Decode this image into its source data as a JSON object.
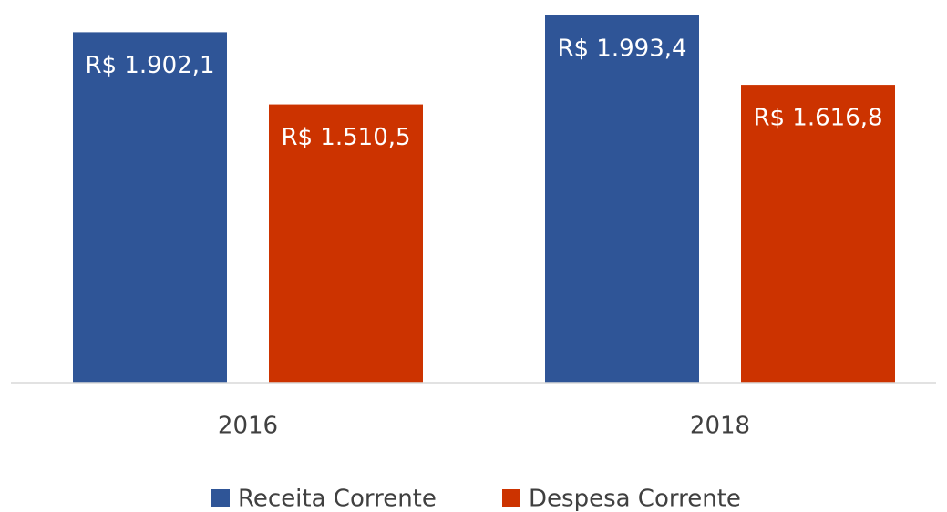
{
  "chart_data": {
    "type": "bar",
    "categories": [
      "2016",
      "2018"
    ],
    "series": [
      {
        "name": "Receita Corrente",
        "color": "#2f5597",
        "values": [
          1902.1,
          1993.4
        ],
        "value_labels": [
          "R$ 1.902,1",
          "R$ 1.993,4"
        ]
      },
      {
        "name": "Despesa Corrente",
        "color": "#cc3300",
        "values": [
          1510.5,
          1616.8
        ],
        "value_labels": [
          "R$ 1.510,5",
          "R$ 1.616,8"
        ]
      }
    ],
    "ylim": [
      0,
      2000
    ],
    "legend": "bottom"
  }
}
